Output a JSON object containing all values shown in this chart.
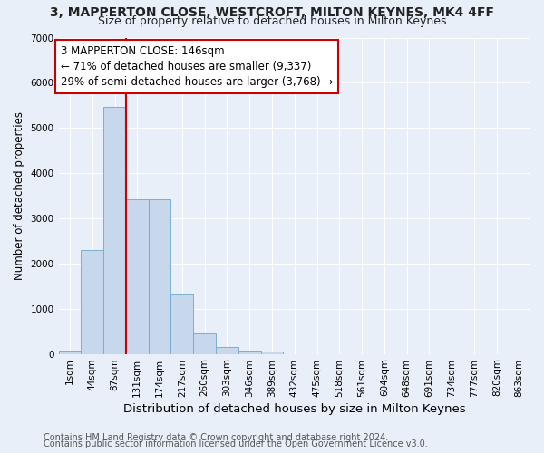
{
  "title1": "3, MAPPERTON CLOSE, WESTCROFT, MILTON KEYNES, MK4 4FF",
  "title2": "Size of property relative to detached houses in Milton Keynes",
  "xlabel": "Distribution of detached houses by size in Milton Keynes",
  "ylabel": "Number of detached properties",
  "bar_color": "#c8d8ec",
  "bar_edge_color": "#7aaed0",
  "background_color": "#e8eff8",
  "grid_color": "#ffffff",
  "categories": [
    "1sqm",
    "44sqm",
    "87sqm",
    "131sqm",
    "174sqm",
    "217sqm",
    "260sqm",
    "303sqm",
    "346sqm",
    "389sqm",
    "432sqm",
    "475sqm",
    "518sqm",
    "561sqm",
    "604sqm",
    "648sqm",
    "691sqm",
    "734sqm",
    "777sqm",
    "820sqm",
    "863sqm"
  ],
  "values": [
    75,
    2290,
    5470,
    3430,
    3430,
    1310,
    460,
    155,
    80,
    55,
    0,
    0,
    0,
    0,
    0,
    0,
    0,
    0,
    0,
    0,
    0
  ],
  "ylim": [
    0,
    7000
  ],
  "yticks": [
    0,
    1000,
    2000,
    3000,
    4000,
    5000,
    6000,
    7000
  ],
  "annotation_text": "3 MAPPERTON CLOSE: 146sqm\n← 71% of detached houses are smaller (9,337)\n29% of semi-detached houses are larger (3,768) →",
  "annotation_box_color": "#ffffff",
  "annotation_box_edge": "#cc0000",
  "vline_position": 2.5,
  "vline_color": "#cc0000",
  "footnote1": "Contains HM Land Registry data © Crown copyright and database right 2024.",
  "footnote2": "Contains public sector information licensed under the Open Government Licence v3.0.",
  "title1_fontsize": 10,
  "title2_fontsize": 9,
  "xlabel_fontsize": 9.5,
  "ylabel_fontsize": 8.5,
  "tick_fontsize": 7.5,
  "annotation_fontsize": 8.5,
  "footnote_fontsize": 7
}
